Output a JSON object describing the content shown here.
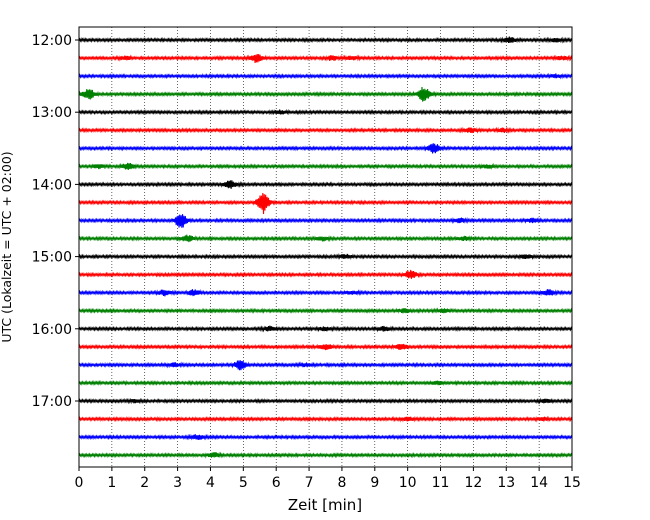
{
  "chart_data": {
    "type": "line",
    "title": "",
    "xlabel": "Zeit  [min]",
    "ylabel": "UTC (Lokalzeit = UTC + 02:00)",
    "xlim": [
      0,
      15
    ],
    "x_ticks": [
      0,
      1,
      2,
      3,
      4,
      5,
      6,
      7,
      8,
      9,
      10,
      11,
      12,
      13,
      14,
      15
    ],
    "x_tick_labels": [
      "0",
      "1",
      "2",
      "3",
      "4",
      "5",
      "6",
      "7",
      "8",
      "9",
      "10",
      "11",
      "12",
      "13",
      "14",
      "15"
    ],
    "y_tick_labels": [
      "12:00",
      "13:00",
      "14:00",
      "15:00",
      "16:00",
      "17:00"
    ],
    "y_tick_rows": [
      0,
      4,
      8,
      12,
      16,
      20
    ],
    "trace_interval_min": 15,
    "grid": "vertical dotted at each minute",
    "colors": [
      "#000000",
      "#ff0000",
      "#0000ff",
      "#008000"
    ],
    "series": [
      {
        "start": "12:00",
        "color": "#000000",
        "events": [
          [
            13.1,
            0.45
          ],
          [
            14.5,
            0.3
          ]
        ]
      },
      {
        "start": "12:15",
        "color": "#ff0000",
        "events": [
          [
            1.4,
            0.3
          ],
          [
            5.4,
            0.8
          ],
          [
            7.7,
            0.4
          ],
          [
            8.3,
            0.3
          ],
          [
            14.7,
            0.3
          ]
        ]
      },
      {
        "start": "12:30",
        "color": "#0000ff",
        "events": [
          [
            14.5,
            0.3
          ]
        ]
      },
      {
        "start": "12:45",
        "color": "#008000",
        "events": [
          [
            0.3,
            0.9
          ],
          [
            10.5,
            1.4
          ]
        ]
      },
      {
        "start": "13:00",
        "color": "#000000",
        "events": [
          [
            6.1,
            0.3
          ]
        ]
      },
      {
        "start": "13:15",
        "color": "#ff0000",
        "events": [
          [
            11.9,
            0.4
          ],
          [
            12.9,
            0.3
          ]
        ]
      },
      {
        "start": "13:30",
        "color": "#0000ff",
        "events": [
          [
            10.8,
            0.9
          ]
        ]
      },
      {
        "start": "13:45",
        "color": "#008000",
        "events": [
          [
            1.5,
            0.6
          ],
          [
            0.6,
            0.3
          ],
          [
            12.4,
            0.3
          ]
        ]
      },
      {
        "start": "14:00",
        "color": "#000000",
        "events": [
          [
            4.6,
            0.7
          ]
        ]
      },
      {
        "start": "14:15",
        "color": "#ff0000",
        "events": [
          [
            5.6,
            2.2
          ]
        ]
      },
      {
        "start": "14:30",
        "color": "#0000ff",
        "events": [
          [
            3.1,
            1.4
          ],
          [
            11.6,
            0.35
          ],
          [
            13.8,
            0.3
          ]
        ]
      },
      {
        "start": "14:45",
        "color": "#008000",
        "events": [
          [
            3.3,
            0.6
          ],
          [
            7.4,
            0.35
          ],
          [
            11.7,
            0.3
          ]
        ]
      },
      {
        "start": "15:00",
        "color": "#000000",
        "events": [
          [
            8.1,
            0.35
          ],
          [
            13.6,
            0.3
          ]
        ]
      },
      {
        "start": "15:15",
        "color": "#ff0000",
        "events": [
          [
            10.1,
            0.8
          ]
        ]
      },
      {
        "start": "15:30",
        "color": "#0000ff",
        "events": [
          [
            2.6,
            0.5
          ],
          [
            3.5,
            0.5
          ],
          [
            8.3,
            0.3
          ],
          [
            14.3,
            0.5
          ]
        ]
      },
      {
        "start": "15:45",
        "color": "#008000",
        "events": [
          [
            9.9,
            0.35
          ],
          [
            11.1,
            0.3
          ]
        ]
      },
      {
        "start": "16:00",
        "color": "#000000",
        "events": [
          [
            5.8,
            0.4
          ],
          [
            9.3,
            0.4
          ],
          [
            7.5,
            0.3
          ]
        ]
      },
      {
        "start": "16:15",
        "color": "#ff0000",
        "events": [
          [
            7.5,
            0.5
          ],
          [
            9.8,
            0.5
          ]
        ]
      },
      {
        "start": "16:30",
        "color": "#0000ff",
        "events": [
          [
            4.9,
            0.9
          ],
          [
            2.9,
            0.3
          ],
          [
            6.9,
            0.3
          ]
        ]
      },
      {
        "start": "16:45",
        "color": "#008000",
        "events": [
          [
            10.9,
            0.25
          ]
        ]
      },
      {
        "start": "17:00",
        "color": "#000000",
        "events": [
          [
            1.7,
            0.25
          ],
          [
            14.2,
            0.3
          ]
        ]
      },
      {
        "start": "17:15",
        "color": "#ff0000",
        "events": [
          [
            10.0,
            0.35
          ],
          [
            14.1,
            0.3
          ]
        ]
      },
      {
        "start": "17:30",
        "color": "#0000ff",
        "events": [
          [
            3.6,
            0.4
          ]
        ]
      },
      {
        "start": "17:45",
        "color": "#008000",
        "events": [
          [
            4.1,
            0.4
          ]
        ]
      }
    ]
  }
}
